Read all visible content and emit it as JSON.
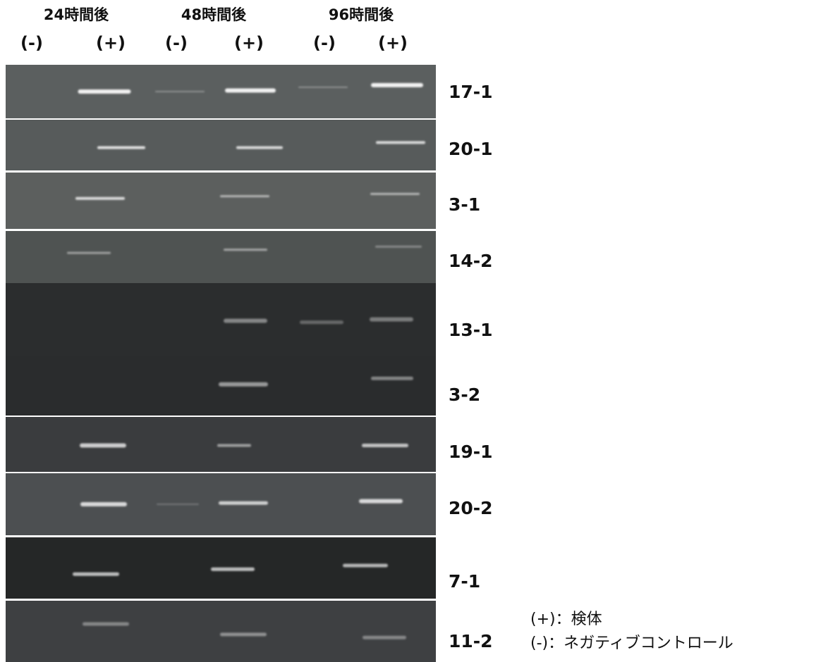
{
  "header": {
    "time_points": [
      "24時間後",
      "48時間後",
      "96時間後"
    ],
    "lanes": [
      "(-)",
      "(+)",
      "(-)",
      "(+)",
      "(-)",
      "(+)"
    ]
  },
  "samples": [
    "17-1",
    "20-1",
    "3-1",
    "14-2",
    "13-1",
    "3-2",
    "19-1",
    "20-2",
    "7-1",
    "11-2"
  ],
  "legend": [
    "(+)：検体",
    "(-)：ネガティブコントロール"
  ]
}
